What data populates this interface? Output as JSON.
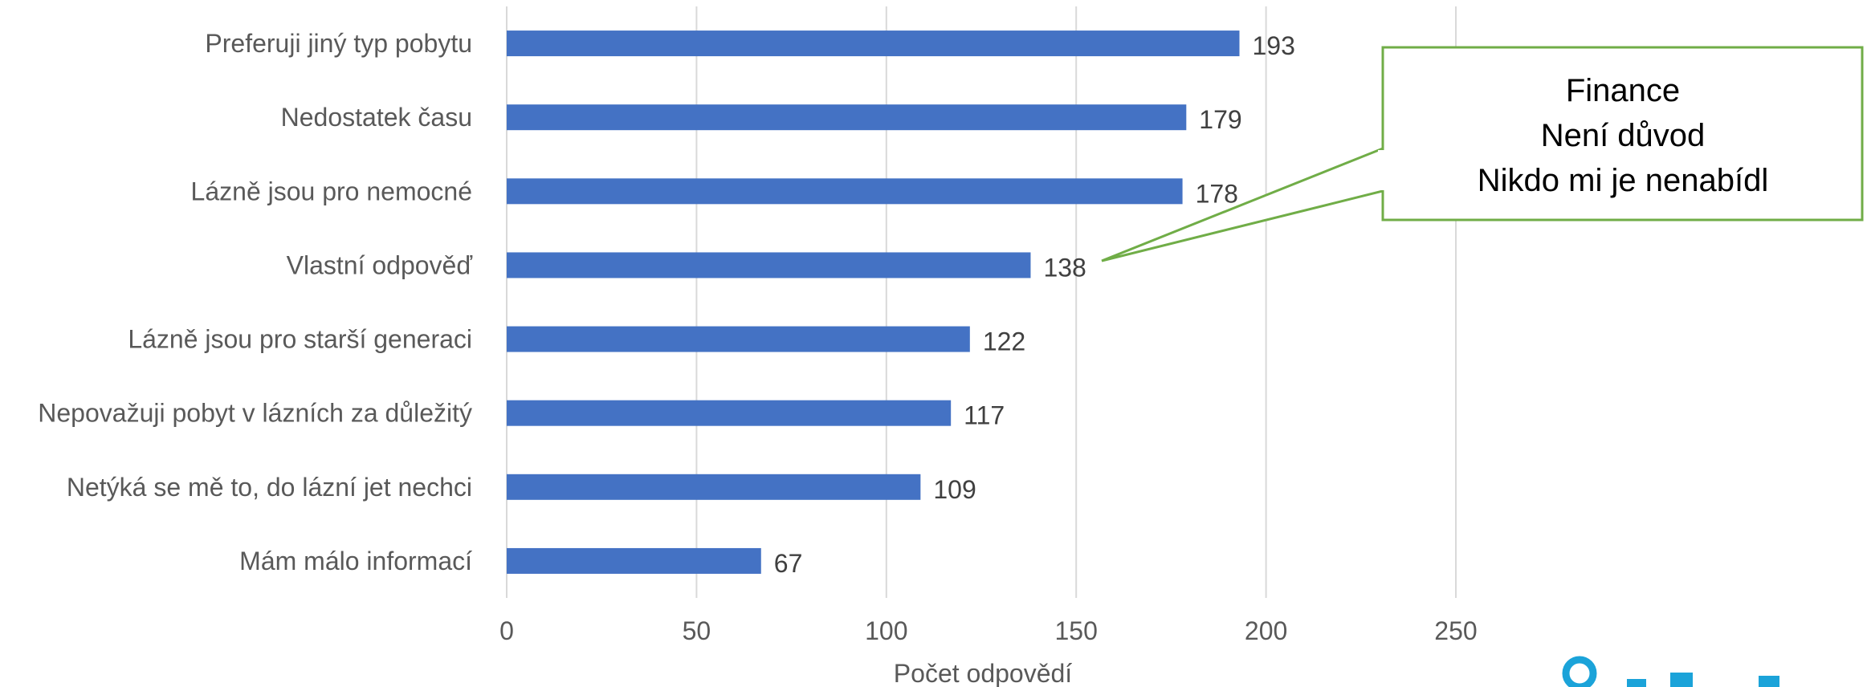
{
  "colors": {
    "bar": "#4472C4",
    "grid": "#D9D9D9",
    "callout_border": "#70AD47",
    "logo": "#1BA3D9"
  },
  "chart_data": {
    "type": "bar",
    "orientation": "horizontal",
    "categories": [
      "Preferuji jiný typ pobytu",
      "Nedostatek času",
      "Lázně jsou pro nemocné",
      "Vlastní odpověď",
      "Lázně jsou pro starší generaci",
      "Nepovažuji pobyt v lázních za důležitý",
      "Netýká se mě to, do lázní jet nechci",
      "Mám málo informací"
    ],
    "values": [
      193,
      179,
      178,
      138,
      122,
      117,
      109,
      67
    ],
    "xlabel": "Počet odpovědí",
    "ylabel": "",
    "xlim": [
      0,
      250
    ],
    "xticks": [
      "0",
      "50",
      "100",
      "150",
      "200",
      "250"
    ],
    "grid": true,
    "legend": "none"
  },
  "callout": {
    "lines": [
      "Finance",
      "Není důvod",
      "Nikdo mi je nenabídl"
    ],
    "points_to": "Vlastní odpověď"
  }
}
